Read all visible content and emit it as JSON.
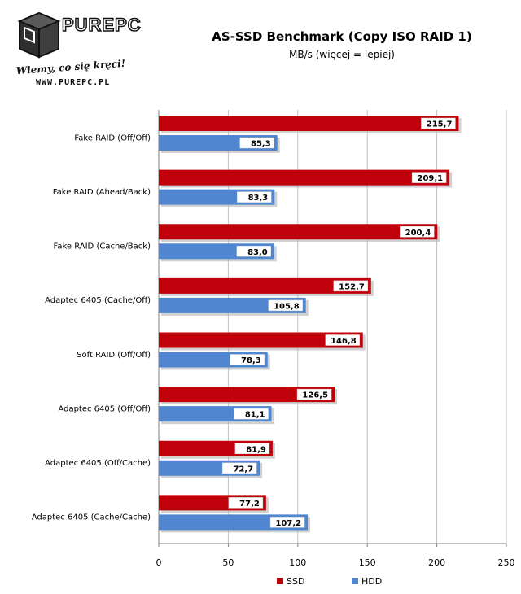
{
  "logo": {
    "brand": "PUREPC",
    "slogan": "Wiemy, co się kręci!",
    "url": "WWW.PUREPC.PL"
  },
  "chart_data": {
    "type": "bar",
    "orientation": "horizontal",
    "title": "AS-SSD Benchmark (Copy ISO RAID 1)",
    "subtitle": "MB/s (więcej = lepiej)",
    "xlabel": "",
    "ylabel": "",
    "xlim": [
      0,
      250
    ],
    "ticks": [
      0,
      50,
      100,
      150,
      200,
      250
    ],
    "grid": true,
    "legend_position": "bottom",
    "categories": [
      "Fake RAID (Off/Off)",
      "Fake RAID (Ahead/Back)",
      "Fake RAID (Cache/Back)",
      "Adaptec 6405 (Cache/Off)",
      "Soft RAID (Off/Off)",
      "Adaptec 6405 (Off/Off)",
      "Adaptec 6405 (Off/Cache)",
      "Adaptec 6405 (Cache/Cache)"
    ],
    "series": [
      {
        "name": "SSD",
        "color": "#c0000b",
        "values": [
          215.7,
          209.1,
          200.4,
          152.7,
          146.8,
          126.5,
          81.9,
          77.2
        ],
        "labels": [
          "215,7",
          "209,1",
          "200,4",
          "152,7",
          "146,8",
          "126,5",
          "81,9",
          "77,2"
        ]
      },
      {
        "name": "HDD",
        "color": "#4f86cf",
        "values": [
          85.3,
          83.3,
          83.0,
          105.8,
          78.3,
          81.1,
          72.7,
          107.2
        ],
        "labels": [
          "85,3",
          "83,3",
          "83,0",
          "105,8",
          "78,3",
          "81,1",
          "72,7",
          "107,2"
        ]
      }
    ]
  }
}
